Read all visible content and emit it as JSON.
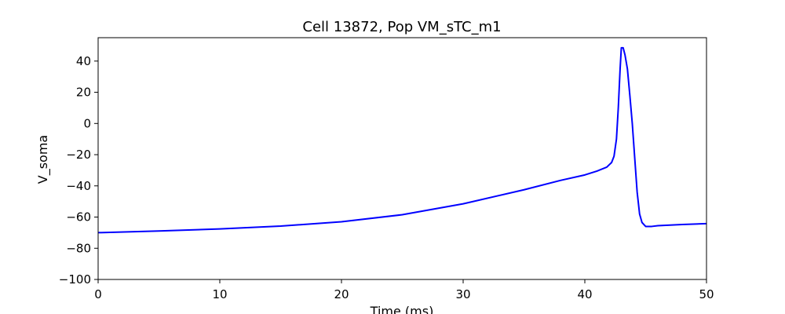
{
  "chart_data": {
    "type": "line",
    "title": "Cell 13872, Pop VM_sTC_m1",
    "xlabel": "Time (ms)",
    "ylabel": "V_soma",
    "xlim": [
      0,
      50
    ],
    "ylim": [
      -100,
      55
    ],
    "xticks": [
      0,
      10,
      20,
      30,
      40,
      50
    ],
    "yticks": [
      -100,
      -80,
      -60,
      -40,
      -20,
      0,
      20,
      40
    ],
    "ytick_labels": [
      "−100",
      "−80",
      "−60",
      "−40",
      "−20",
      "0",
      "20",
      "40"
    ],
    "xtick_labels": [
      "0",
      "10",
      "20",
      "30",
      "40",
      "50"
    ],
    "grid": false,
    "series": [
      {
        "color": "#0000ff",
        "x": [
          0,
          5,
          10,
          15,
          20,
          25,
          30,
          35,
          38,
          40,
          41,
          41.8,
          42.2,
          42.4,
          42.6,
          42.75,
          42.9,
          43.0,
          43.15,
          43.3,
          43.5,
          43.7,
          43.9,
          44.1,
          44.3,
          44.5,
          44.7,
          45.0,
          45.5,
          46,
          48,
          50
        ],
        "y": [
          -70,
          -68.9,
          -67.6,
          -65.8,
          -63,
          -58.5,
          -51.5,
          -42.5,
          -36.5,
          -33,
          -30.5,
          -28,
          -25,
          -21,
          -10,
          10,
          35,
          48.5,
          48.5,
          44,
          35,
          18,
          0,
          -22,
          -44,
          -58,
          -63.5,
          -66,
          -66,
          -65.5,
          -64.8,
          -64.2
        ]
      }
    ]
  }
}
